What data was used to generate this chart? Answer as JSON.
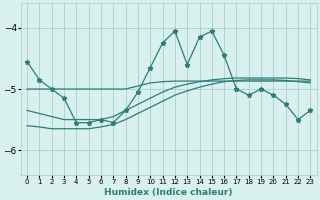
{
  "title": "",
  "xlabel": "Humidex (Indice chaleur)",
  "bg_color": "#d8f0ee",
  "grid_color": "#aacfcc",
  "line_color": "#2d7d7a",
  "x": [
    0,
    1,
    2,
    3,
    4,
    5,
    6,
    7,
    8,
    9,
    10,
    11,
    12,
    13,
    14,
    15,
    16,
    17,
    18,
    19,
    20,
    21,
    22,
    23
  ],
  "y_main": [
    -4.55,
    -4.85,
    -5.0,
    -5.15,
    -5.55,
    -5.55,
    -5.5,
    -5.55,
    -5.35,
    -5.05,
    -4.65,
    -4.25,
    -4.05,
    -4.6,
    -4.15,
    -4.05,
    -4.45,
    -5.0,
    -5.1,
    -5.0,
    -5.1,
    -5.25,
    -5.5,
    -5.35
  ],
  "y_line1": [
    -5.0,
    -5.0,
    -5.0,
    -5.0,
    -5.0,
    -5.0,
    -5.0,
    -5.0,
    -5.0,
    -4.95,
    -4.9,
    -4.88,
    -4.87,
    -4.87,
    -4.87,
    -4.87,
    -4.87,
    -4.87,
    -4.87,
    -4.87,
    -4.87,
    -4.87,
    -4.87,
    -4.87
  ],
  "y_line2": [
    -5.35,
    -5.4,
    -5.45,
    -5.5,
    -5.5,
    -5.5,
    -5.5,
    -5.45,
    -5.35,
    -5.25,
    -5.15,
    -5.05,
    -4.97,
    -4.92,
    -4.88,
    -4.85,
    -4.83,
    -4.82,
    -4.82,
    -4.82,
    -4.82,
    -4.82,
    -4.83,
    -4.85
  ],
  "y_line3": [
    -5.6,
    -5.62,
    -5.65,
    -5.65,
    -5.65,
    -5.65,
    -5.62,
    -5.58,
    -5.5,
    -5.4,
    -5.3,
    -5.2,
    -5.1,
    -5.03,
    -4.97,
    -4.92,
    -4.88,
    -4.86,
    -4.85,
    -4.85,
    -4.85,
    -4.86,
    -4.88,
    -4.9
  ],
  "ylim": [
    -6.4,
    -3.6
  ],
  "xlim": [
    -0.5,
    23.5
  ],
  "yticks": [
    -6,
    -5,
    -4
  ],
  "xticks": [
    0,
    1,
    2,
    3,
    4,
    5,
    6,
    7,
    8,
    9,
    10,
    11,
    12,
    13,
    14,
    15,
    16,
    17,
    18,
    19,
    20,
    21,
    22,
    23
  ]
}
